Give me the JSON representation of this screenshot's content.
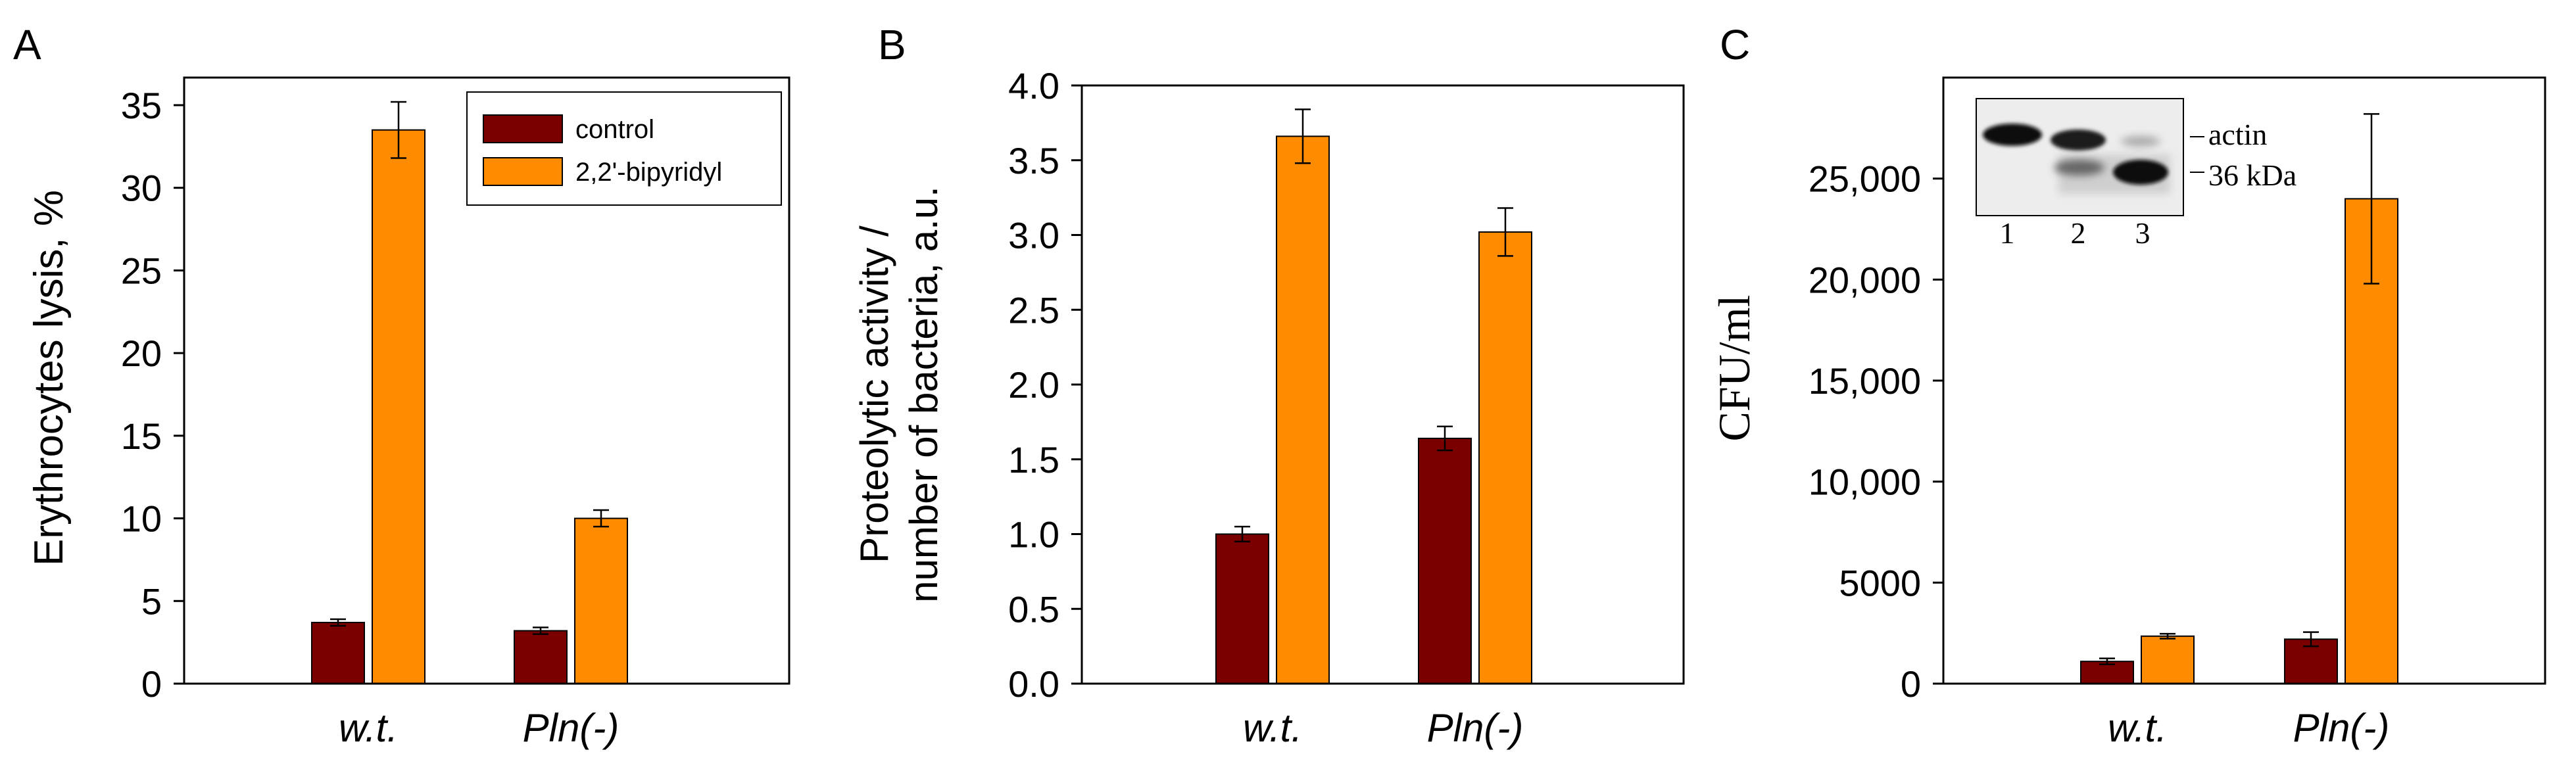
{
  "colors": {
    "control": "#7a0000",
    "bipyridyl": "#ff8c00",
    "axis": "#000000"
  },
  "chart_data": [
    {
      "type": "bar",
      "panel": "A",
      "ylabel": "Erythrocytes lysis, %",
      "ylim": [
        0,
        35
      ],
      "yticks": [
        "0",
        "5",
        "10",
        "15",
        "20",
        "25",
        "30",
        "35"
      ],
      "ytick_values": [
        0,
        5,
        10,
        15,
        20,
        25,
        30,
        35
      ],
      "categories": [
        "w.t.",
        "Pln(-)"
      ],
      "series": [
        {
          "name": "control",
          "color": "#7a0000",
          "values": [
            3.7,
            3.2
          ],
          "errors": [
            0.2,
            0.2
          ]
        },
        {
          "name": "2,2'-bipyridyl",
          "color": "#ff8c00",
          "values": [
            33.5,
            10.0
          ],
          "errors": [
            1.7,
            0.5
          ]
        }
      ],
      "legend": {
        "position": "top-right",
        "entries": [
          "control",
          "2,2'-bipyridyl"
        ]
      }
    },
    {
      "type": "bar",
      "panel": "B",
      "ylabel_line1": "Proteolytic activity /",
      "ylabel_line2": "number of bacteria, a.u.",
      "ylim": [
        0,
        4
      ],
      "yticks": [
        "0.0",
        "0.5",
        "1.0",
        "1.5",
        "2.0",
        "2.5",
        "3.0",
        "3.5",
        "4.0"
      ],
      "ytick_values": [
        0,
        0.5,
        1,
        1.5,
        2,
        2.5,
        3,
        3.5,
        4
      ],
      "categories": [
        "w.t.",
        "Pln(-)"
      ],
      "series": [
        {
          "name": "control",
          "color": "#7a0000",
          "values": [
            1.0,
            1.64
          ],
          "errors": [
            0.05,
            0.08
          ]
        },
        {
          "name": "2,2'-bipyridyl",
          "color": "#ff8c00",
          "values": [
            3.66,
            3.02
          ],
          "errors": [
            0.18,
            0.16
          ]
        }
      ]
    },
    {
      "type": "bar",
      "panel": "C",
      "ylabel": "CFU/ml",
      "ylim": [
        0,
        30000
      ],
      "yticks": [
        "0",
        "5000",
        "10,000",
        "15,000",
        "20,000",
        "25,000"
      ],
      "ytick_values": [
        0,
        5000,
        10000,
        15000,
        20000,
        25000
      ],
      "categories": [
        "w.t.",
        "Pln(-)"
      ],
      "series": [
        {
          "name": "control",
          "color": "#7a0000",
          "values": [
            1100,
            2200
          ],
          "errors": [
            150,
            350
          ]
        },
        {
          "name": "2,2'-bipyridyl",
          "color": "#ff8c00",
          "values": [
            2350,
            24000
          ],
          "errors": [
            120,
            4200
          ]
        }
      ],
      "inset": {
        "type": "western-blot",
        "lane_labels": [
          "1",
          "2",
          "3"
        ],
        "band_labels": [
          "actin",
          "36 kDa"
        ]
      }
    }
  ]
}
